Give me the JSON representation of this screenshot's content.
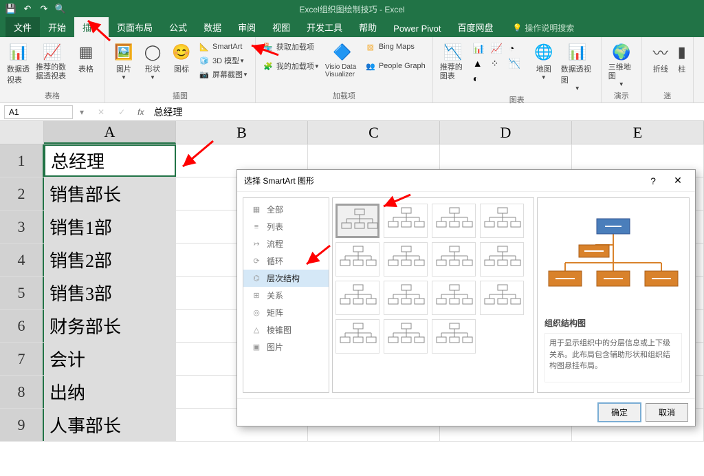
{
  "title": "Excel组织图绘制技巧 - Excel",
  "tabs": [
    "文件",
    "开始",
    "插入",
    "页面布局",
    "公式",
    "数据",
    "审阅",
    "视图",
    "开发工具",
    "帮助",
    "Power Pivot",
    "百度网盘"
  ],
  "active_tab": "插入",
  "tell_me": "操作说明搜索",
  "ribbon": {
    "group_tables": "表格",
    "pivottable": "数据透视表",
    "recommended_pivot": "推荐的数据透视表",
    "table": "表格",
    "group_illust": "插图",
    "pictures": "图片",
    "shapes": "形状",
    "icons": "图标",
    "smartart": "SmartArt",
    "model3d": "3D 模型",
    "screenshot": "屏幕截图",
    "group_addins": "加载项",
    "get_addins": "获取加载项",
    "my_addins": "我的加载项",
    "visio": "Visio Data Visualizer",
    "bing": "Bing Maps",
    "people": "People Graph",
    "group_charts": "图表",
    "rec_charts": "推荐的图表",
    "maps": "地图",
    "pivotchart": "数据透视图",
    "group_demo": "演示",
    "map3d": "三维地图",
    "group_spark": "迷",
    "line": "折线",
    "column": "柱"
  },
  "name_box": "A1",
  "formula": "总经理",
  "columns": [
    "A",
    "B",
    "C",
    "D",
    "E"
  ],
  "col_widths": {
    "A": 192,
    "B": 192,
    "C": 192,
    "D": 192,
    "E": 192
  },
  "rows": [
    {
      "n": 1,
      "A": "总经理"
    },
    {
      "n": 2,
      "A": "销售部长"
    },
    {
      "n": 3,
      "A": "销售1部"
    },
    {
      "n": 4,
      "A": "销售2部"
    },
    {
      "n": 5,
      "A": "销售3部"
    },
    {
      "n": 6,
      "A": "财务部长"
    },
    {
      "n": 7,
      "A": "会计"
    },
    {
      "n": 8,
      "A": "出纳"
    },
    {
      "n": 9,
      "A": "人事部长"
    }
  ],
  "dialog": {
    "title": "选择 SmartArt 图形",
    "categories": [
      {
        "icon": "▦",
        "label": "全部"
      },
      {
        "icon": "≡",
        "label": "列表"
      },
      {
        "icon": "↣",
        "label": "流程"
      },
      {
        "icon": "⟳",
        "label": "循环"
      },
      {
        "icon": "⌬",
        "label": "层次结构",
        "selected": true
      },
      {
        "icon": "⊞",
        "label": "关系"
      },
      {
        "icon": "◎",
        "label": "矩阵"
      },
      {
        "icon": "△",
        "label": "棱锥图"
      },
      {
        "icon": "▣",
        "label": "图片"
      }
    ],
    "preview_title": "组织结构图",
    "preview_desc": "用于显示组织中的分层信息或上下级关系。此布局包含辅助形状和组织结构图悬挂布局。",
    "ok": "确定",
    "cancel": "取消",
    "preview_colors": {
      "top": "#4a7ebb",
      "children": "#d9822b",
      "line": "#7ba3d0",
      "border": "#2f528f"
    }
  }
}
